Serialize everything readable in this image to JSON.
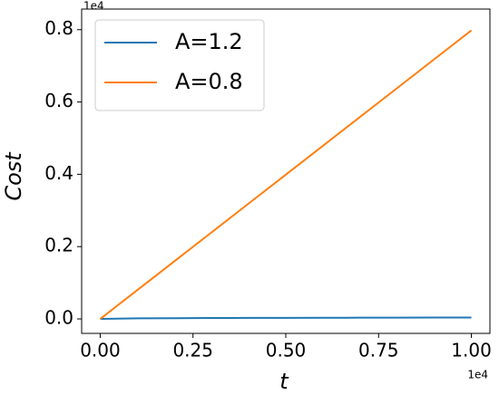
{
  "chart_data": {
    "type": "line",
    "x_label": "t",
    "y_label": "Cost",
    "x_offset_label": "1e4",
    "y_offset_label": "1e4",
    "x": [
      0,
      1000,
      2000,
      3000,
      4000,
      5000,
      6000,
      7000,
      8000,
      9000,
      10000
    ],
    "series": [
      {
        "name": "A=1.2",
        "color": "#1f77b4",
        "values": [
          0,
          15,
          20,
          25,
          28,
          30,
          32,
          34,
          36,
          38,
          40
        ]
      },
      {
        "name": "A=0.8",
        "color": "#ff7f0e",
        "values": [
          0,
          798,
          1596,
          2394,
          3192,
          3990,
          4788,
          5586,
          6384,
          7182,
          7980
        ]
      }
    ],
    "xlim": [
      -500,
      10500
    ],
    "ylim": [
      -400,
      8570
    ],
    "xticks": [
      {
        "value": 0,
        "label": "0.00"
      },
      {
        "value": 2500,
        "label": "0.25"
      },
      {
        "value": 5000,
        "label": "0.50"
      },
      {
        "value": 7500,
        "label": "0.75"
      },
      {
        "value": 10000,
        "label": "1.00"
      }
    ],
    "yticks": [
      {
        "value": 0,
        "label": "0.0"
      },
      {
        "value": 2000,
        "label": "0.2"
      },
      {
        "value": 4000,
        "label": "0.4"
      },
      {
        "value": 6000,
        "label": "0.6"
      },
      {
        "value": 8000,
        "label": "0.8"
      }
    ],
    "grid": false,
    "legend": "upper left"
  }
}
